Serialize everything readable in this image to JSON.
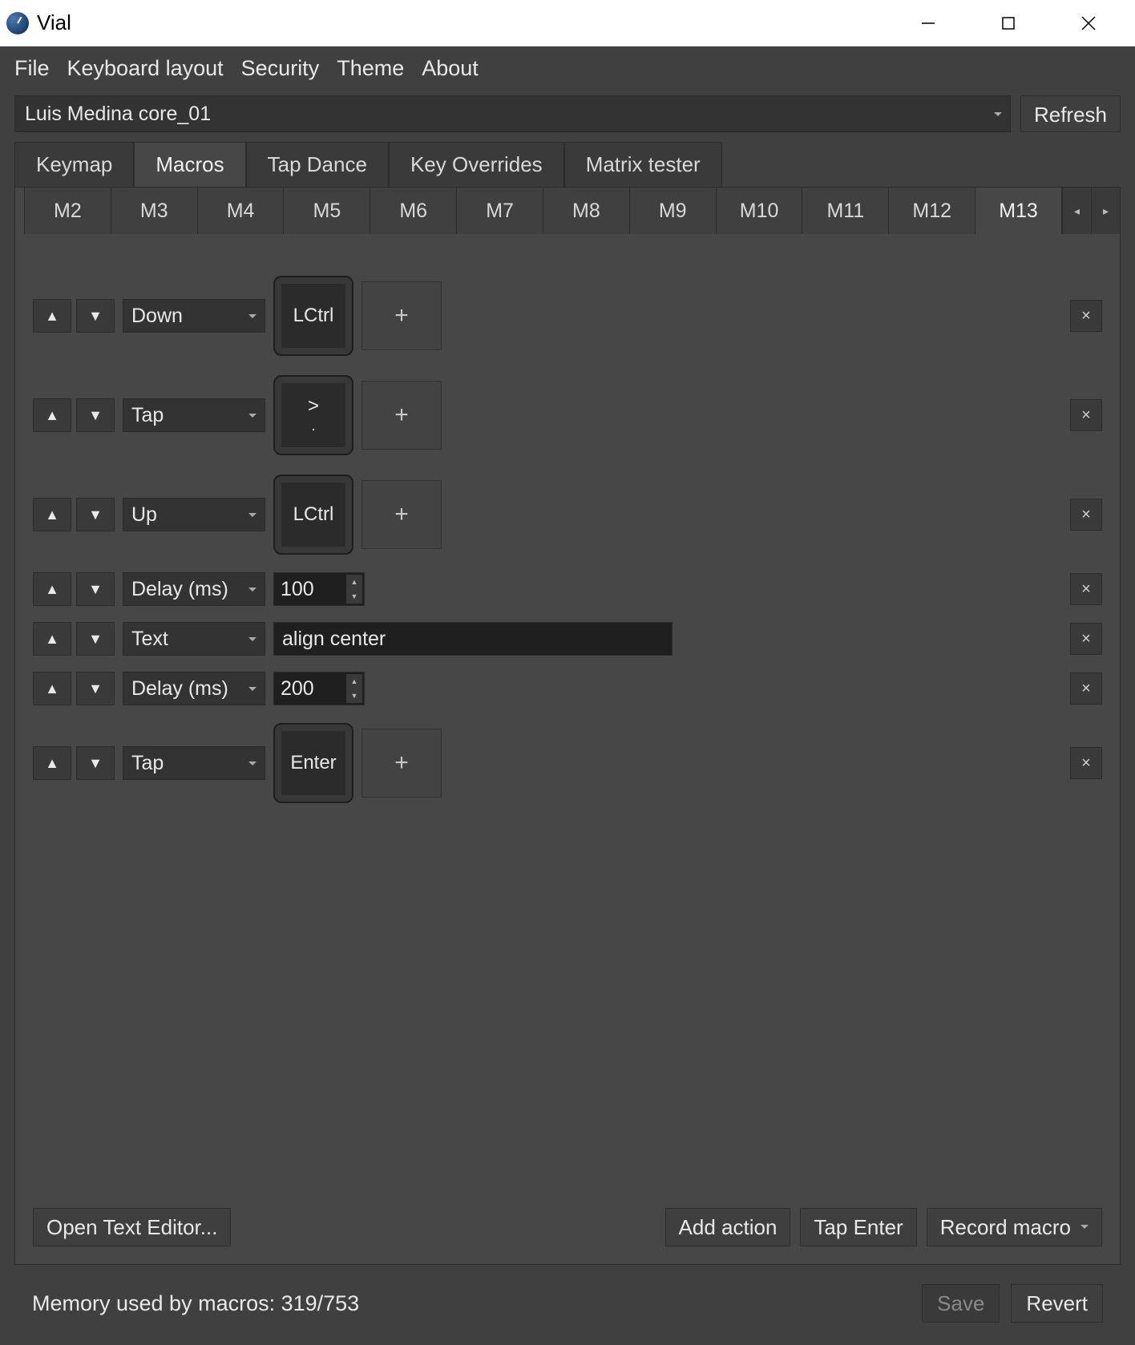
{
  "window": {
    "title": "Vial"
  },
  "menubar": [
    "File",
    "Keyboard layout",
    "Security",
    "Theme",
    "About"
  ],
  "device": {
    "name": "Luis Medina core_01",
    "refresh": "Refresh"
  },
  "main_tabs": {
    "items": [
      "Keymap",
      "Macros",
      "Tap Dance",
      "Key Overrides",
      "Matrix tester"
    ],
    "active_index": 1
  },
  "macro_tabs": {
    "items": [
      "M2",
      "M3",
      "M4",
      "M5",
      "M6",
      "M7",
      "M8",
      "M9",
      "M10",
      "M11",
      "M12",
      "M13"
    ],
    "active_index": 11
  },
  "rows": [
    {
      "type": "key",
      "type_label": "Down",
      "key_main": "LCtrl",
      "key_sub": ""
    },
    {
      "type": "key",
      "type_label": "Tap",
      "key_main": ">",
      "key_sub": "."
    },
    {
      "type": "key",
      "type_label": "Up",
      "key_main": "LCtrl",
      "key_sub": ""
    },
    {
      "type": "delay",
      "type_label": "Delay (ms)",
      "value": "100"
    },
    {
      "type": "text",
      "type_label": "Text",
      "value": "align center"
    },
    {
      "type": "delay",
      "type_label": "Delay (ms)",
      "value": "200"
    },
    {
      "type": "key",
      "type_label": "Tap",
      "key_main": "Enter",
      "key_sub": ""
    }
  ],
  "bottom": {
    "open_editor": "Open Text Editor...",
    "add_action": "Add action",
    "tap_enter": "Tap Enter",
    "record_macro": "Record macro"
  },
  "status": {
    "text": "Memory used by macros: 319/753",
    "save": "Save",
    "revert": "Revert"
  },
  "icons": {
    "plus": "+",
    "close": "×",
    "up": "▲",
    "down": "▼",
    "left": "◂",
    "right": "▸"
  }
}
